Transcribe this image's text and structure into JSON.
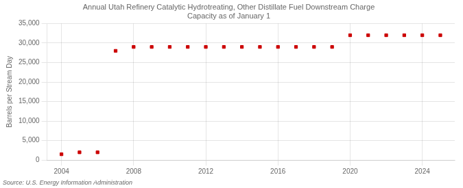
{
  "chart_data": {
    "type": "scatter",
    "title": "Annual Utah Refinery Catalytic Hydrotreating, Other Distillate Fuel Downstream Charge\nCapacity as of January 1",
    "ylabel": "Barrels per Stream Day",
    "annotations": [
      "Source: U.S. Energy Information Administration"
    ],
    "x": [
      2004,
      2005,
      2006,
      2007,
      2008,
      2009,
      2010,
      2011,
      2012,
      2013,
      2014,
      2015,
      2016,
      2017,
      2018,
      2019,
      2020,
      2021,
      2022,
      2023,
      2024,
      2025
    ],
    "values": [
      1500,
      2000,
      2000,
      28000,
      29000,
      29000,
      29000,
      29000,
      29000,
      29000,
      29000,
      29000,
      29000,
      29000,
      29000,
      29000,
      32000,
      32000,
      32000,
      32000,
      32000,
      32000
    ],
    "color": "#cc0000",
    "marker": "square",
    "xlim": [
      2003.2,
      2025.8
    ],
    "xticks": [
      2004,
      2008,
      2012,
      2016,
      2020,
      2024
    ],
    "ylim": [
      0,
      35000
    ],
    "yticks": [
      0,
      {
        "value": 5000,
        "label": "5,000"
      },
      {
        "value": 10000,
        "label": "10,000"
      },
      {
        "value": 15000,
        "label": "15,000"
      },
      {
        "value": 20000,
        "label": "20,000"
      },
      {
        "value": 25000,
        "label": "25,000"
      },
      {
        "value": 30000,
        "label": "30,000"
      },
      {
        "value": 35000,
        "label": "35,000"
      }
    ],
    "grid": true
  }
}
